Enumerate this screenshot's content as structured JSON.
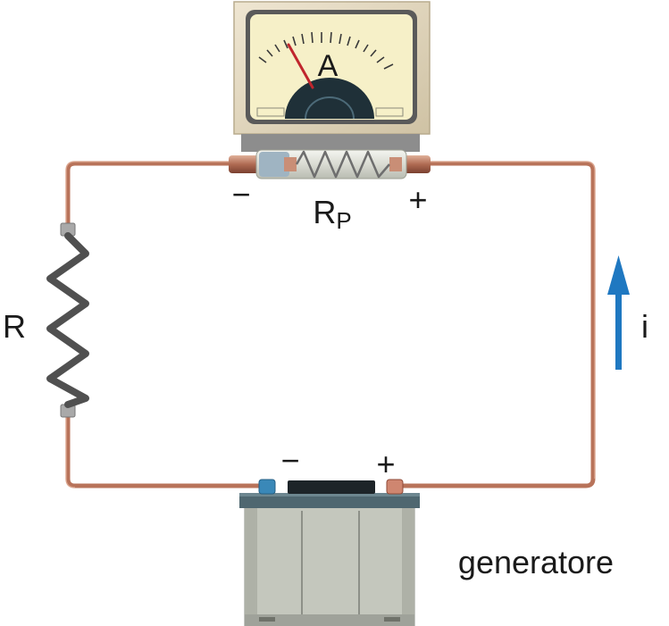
{
  "diagram": {
    "meter_label": "A",
    "shunt_label_main": "R",
    "shunt_label_sub": "P",
    "ammeter_minus": "−",
    "ammeter_plus": "+",
    "resistor_label": "R",
    "current_label": "i",
    "battery_minus": "−",
    "battery_plus": "+",
    "generator_label": "generatore"
  },
  "colors": {
    "wire": "#b8735a",
    "resistor": "#505050",
    "arrow": "#1f78c1",
    "meter_face": "#f6f0c8",
    "battery_body": "#c4c7bd",
    "battery_lid": "#4f6770"
  }
}
